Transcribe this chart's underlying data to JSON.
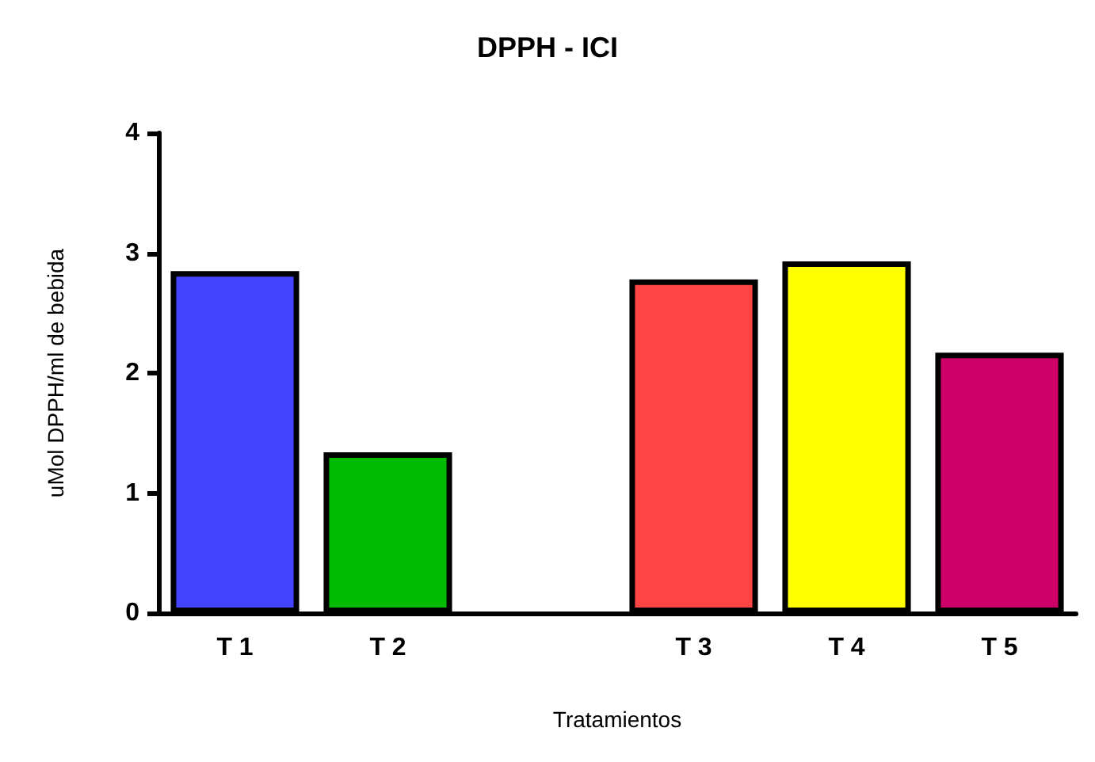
{
  "chart_data": {
    "type": "bar",
    "title": "DPPH - ICI",
    "xlabel": "Tratamientos",
    "ylabel": "uMol DPPH/ml de bebida",
    "categories": [
      "T 1",
      "T 2",
      null,
      "T 3",
      "T 4",
      "T 5"
    ],
    "values": [
      2.85,
      1.34,
      null,
      2.78,
      2.93,
      2.17
    ],
    "colors": [
      "#4444ff",
      "#00bb00",
      null,
      "#ff4444",
      "#ffff00",
      "#cc0066"
    ],
    "ylim": [
      0,
      4
    ],
    "yticks": [
      0,
      1,
      2,
      3,
      4
    ],
    "grid": false
  }
}
